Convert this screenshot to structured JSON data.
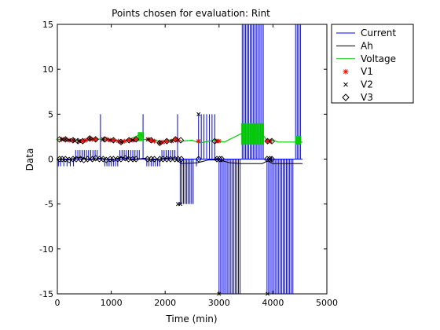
{
  "chart_data": {
    "type": "line",
    "title": "Points chosen for evaluation: Rint",
    "xlabel": "Time (min)",
    "ylabel": "Data",
    "xlim": [
      0,
      5000
    ],
    "ylim": [
      -15,
      15
    ],
    "xticks": [
      0,
      1000,
      2000,
      3000,
      4000,
      5000
    ],
    "yticks": [
      -15,
      -10,
      -5,
      0,
      5,
      10,
      15
    ],
    "grid": false,
    "legend_position": "top-right outside",
    "series": [
      {
        "name": "Current",
        "color": "#0000ff",
        "style": "spiky line",
        "baseline": [
          [
            0,
            0
          ],
          [
            4550,
            0
          ]
        ],
        "spikes": [
          {
            "x": 20,
            "y": -0.8
          },
          {
            "x": 60,
            "y": -0.8
          },
          {
            "x": 120,
            "y": -0.8
          },
          {
            "x": 180,
            "y": -0.8
          },
          {
            "x": 240,
            "y": -0.8
          },
          {
            "x": 300,
            "y": -0.8
          },
          {
            "x": 340,
            "y": 1
          },
          {
            "x": 380,
            "y": 1
          },
          {
            "x": 420,
            "y": 1
          },
          {
            "x": 460,
            "y": 1
          },
          {
            "x": 500,
            "y": 1
          },
          {
            "x": 540,
            "y": 1
          },
          {
            "x": 580,
            "y": 1
          },
          {
            "x": 620,
            "y": 1
          },
          {
            "x": 660,
            "y": 1
          },
          {
            "x": 700,
            "y": 1
          },
          {
            "x": 740,
            "y": 1
          },
          {
            "x": 800,
            "y": 5
          },
          {
            "x": 880,
            "y": -0.8
          },
          {
            "x": 920,
            "y": -0.8
          },
          {
            "x": 960,
            "y": -0.8
          },
          {
            "x": 1000,
            "y": -0.8
          },
          {
            "x": 1040,
            "y": -0.8
          },
          {
            "x": 1080,
            "y": -0.8
          },
          {
            "x": 1120,
            "y": -0.8
          },
          {
            "x": 1160,
            "y": 1
          },
          {
            "x": 1200,
            "y": 1
          },
          {
            "x": 1240,
            "y": 1
          },
          {
            "x": 1280,
            "y": 1
          },
          {
            "x": 1320,
            "y": 1
          },
          {
            "x": 1360,
            "y": 1
          },
          {
            "x": 1400,
            "y": 1
          },
          {
            "x": 1440,
            "y": 1
          },
          {
            "x": 1480,
            "y": 1
          },
          {
            "x": 1520,
            "y": 1
          },
          {
            "x": 1590,
            "y": 5
          },
          {
            "x": 1660,
            "y": -0.8
          },
          {
            "x": 1700,
            "y": -0.8
          },
          {
            "x": 1740,
            "y": -0.8
          },
          {
            "x": 1780,
            "y": -0.8
          },
          {
            "x": 1820,
            "y": -0.8
          },
          {
            "x": 1860,
            "y": -0.8
          },
          {
            "x": 1900,
            "y": -0.8
          },
          {
            "x": 1940,
            "y": 1
          },
          {
            "x": 1980,
            "y": 1
          },
          {
            "x": 2020,
            "y": 1
          },
          {
            "x": 2060,
            "y": 1
          },
          {
            "x": 2100,
            "y": 1
          },
          {
            "x": 2140,
            "y": 1
          },
          {
            "x": 2180,
            "y": 1
          },
          {
            "x": 2230,
            "y": 5
          },
          {
            "x": 2280,
            "y": -5
          },
          {
            "x": 2310,
            "y": -5
          },
          {
            "x": 2340,
            "y": -5
          },
          {
            "x": 2370,
            "y": -5
          },
          {
            "x": 2400,
            "y": -5
          },
          {
            "x": 2430,
            "y": -5
          },
          {
            "x": 2460,
            "y": -5
          },
          {
            "x": 2490,
            "y": -5
          },
          {
            "x": 2520,
            "y": -5
          },
          {
            "x": 2580,
            "y": -0.8
          },
          {
            "x": 2620,
            "y": 5
          },
          {
            "x": 2670,
            "y": 5
          },
          {
            "x": 2720,
            "y": 5
          },
          {
            "x": 2770,
            "y": 5
          },
          {
            "x": 2820,
            "y": 5
          },
          {
            "x": 2870,
            "y": 5
          },
          {
            "x": 2920,
            "y": 5
          },
          {
            "x": 3000,
            "y": -15
          },
          {
            "x": 3030,
            "y": -15
          },
          {
            "x": 3060,
            "y": -15
          },
          {
            "x": 3090,
            "y": -15
          },
          {
            "x": 3120,
            "y": -15
          },
          {
            "x": 3150,
            "y": -15
          },
          {
            "x": 3180,
            "y": -15
          },
          {
            "x": 3210,
            "y": -15
          },
          {
            "x": 3240,
            "y": -15
          },
          {
            "x": 3270,
            "y": -15
          },
          {
            "x": 3300,
            "y": -15
          },
          {
            "x": 3330,
            "y": -15
          },
          {
            "x": 3360,
            "y": -15
          },
          {
            "x": 3390,
            "y": -15
          },
          {
            "x": 3430,
            "y": 15
          },
          {
            "x": 3460,
            "y": 15
          },
          {
            "x": 3490,
            "y": 15
          },
          {
            "x": 3520,
            "y": 15
          },
          {
            "x": 3550,
            "y": 15
          },
          {
            "x": 3580,
            "y": 15
          },
          {
            "x": 3610,
            "y": 15
          },
          {
            "x": 3640,
            "y": 15
          },
          {
            "x": 3670,
            "y": 15
          },
          {
            "x": 3700,
            "y": 15
          },
          {
            "x": 3730,
            "y": 15
          },
          {
            "x": 3760,
            "y": 15
          },
          {
            "x": 3790,
            "y": 15
          },
          {
            "x": 3820,
            "y": 15
          },
          {
            "x": 3890,
            "y": -15
          },
          {
            "x": 3920,
            "y": -15
          },
          {
            "x": 3950,
            "y": -15
          },
          {
            "x": 3980,
            "y": -15
          },
          {
            "x": 4010,
            "y": -15
          },
          {
            "x": 4040,
            "y": -15
          },
          {
            "x": 4070,
            "y": -15
          },
          {
            "x": 4100,
            "y": -15
          },
          {
            "x": 4130,
            "y": -15
          },
          {
            "x": 4160,
            "y": -15
          },
          {
            "x": 4190,
            "y": -15
          },
          {
            "x": 4220,
            "y": -15
          },
          {
            "x": 4250,
            "y": -15
          },
          {
            "x": 4280,
            "y": -15
          },
          {
            "x": 4310,
            "y": -15
          },
          {
            "x": 4340,
            "y": -15
          },
          {
            "x": 4370,
            "y": -15
          },
          {
            "x": 4420,
            "y": 15
          },
          {
            "x": 4450,
            "y": 15
          },
          {
            "x": 4480,
            "y": 15
          },
          {
            "x": 4510,
            "y": 15
          }
        ]
      },
      {
        "name": "Ah",
        "color": "#000000",
        "style": "line",
        "points": [
          [
            0,
            0
          ],
          [
            200,
            -0.1
          ],
          [
            400,
            0.2
          ],
          [
            600,
            -0.1
          ],
          [
            800,
            0.1
          ],
          [
            1000,
            -0.1
          ],
          [
            1200,
            0.2
          ],
          [
            1400,
            -0.1
          ],
          [
            1600,
            0.1
          ],
          [
            1800,
            -0.1
          ],
          [
            2000,
            0.1
          ],
          [
            2200,
            0
          ],
          [
            2300,
            -0.5
          ],
          [
            2600,
            -0.4
          ],
          [
            2800,
            -0.1
          ],
          [
            3000,
            -0.1
          ],
          [
            3200,
            -0.4
          ],
          [
            3400,
            -0.5
          ],
          [
            3800,
            -0.5
          ],
          [
            3900,
            -0.2
          ],
          [
            4000,
            -0.5
          ],
          [
            4400,
            -0.5
          ],
          [
            4550,
            -0.5
          ]
        ]
      },
      {
        "name": "Voltage",
        "color": "#00cc00",
        "style": "band",
        "points": [
          [
            0,
            2.2
          ],
          [
            300,
            2.1
          ],
          [
            500,
            2.0
          ],
          [
            700,
            2.3
          ],
          [
            800,
            2.2
          ],
          [
            1000,
            2.2
          ],
          [
            1200,
            1.9
          ],
          [
            1450,
            2.5
          ],
          [
            1550,
            2.8
          ],
          [
            1600,
            2.2
          ],
          [
            1800,
            2.1
          ],
          [
            2000,
            1.9
          ],
          [
            2200,
            2.3
          ],
          [
            2300,
            2.0
          ],
          [
            2500,
            2.1
          ],
          [
            2650,
            1.8
          ],
          [
            2900,
            2.1
          ],
          [
            3000,
            2.0
          ],
          [
            3100,
            1.9
          ],
          [
            3400,
            2.8
          ],
          [
            3800,
            2.8
          ],
          [
            3900,
            2.0
          ],
          [
            4000,
            2.1
          ],
          [
            4100,
            1.9
          ],
          [
            4550,
            1.9
          ]
        ],
        "noisy_ranges": [
          {
            "x0": 3420,
            "x1": 3830,
            "ylo": 1.6,
            "yhi": 4.0
          },
          {
            "x0": 4420,
            "x1": 4530,
            "ylo": 1.6,
            "yhi": 2.6
          },
          {
            "x0": 1500,
            "x1": 1600,
            "ylo": 2.0,
            "yhi": 3.0
          }
        ]
      },
      {
        "name": "V1",
        "color": "#ff0000",
        "marker": "asterisk",
        "points": [
          [
            80,
            2.2
          ],
          [
            150,
            2.2
          ],
          [
            220,
            2.1
          ],
          [
            300,
            2.1
          ],
          [
            400,
            2.0
          ],
          [
            470,
            2.0
          ],
          [
            530,
            2.1
          ],
          [
            600,
            2.3
          ],
          [
            650,
            2.2
          ],
          [
            710,
            2.2
          ],
          [
            850,
            2.2
          ],
          [
            920,
            2.2
          ],
          [
            980,
            2.1
          ],
          [
            1040,
            2.1
          ],
          [
            1130,
            2.0
          ],
          [
            1190,
            1.9
          ],
          [
            1250,
            2.0
          ],
          [
            1330,
            2.1
          ],
          [
            1400,
            2.1
          ],
          [
            1460,
            2.2
          ],
          [
            1680,
            2.2
          ],
          [
            1740,
            2.1
          ],
          [
            1800,
            2.0
          ],
          [
            1900,
            1.8
          ],
          [
            1960,
            1.9
          ],
          [
            2030,
            2.0
          ],
          [
            2120,
            2.0
          ],
          [
            2190,
            2.2
          ],
          [
            2240,
            2.1
          ],
          [
            2620,
            2.0
          ],
          [
            2960,
            2.0
          ],
          [
            3000,
            2.0
          ],
          [
            3900,
            2.0
          ],
          [
            3950,
            2.0
          ]
        ]
      },
      {
        "name": "V2",
        "color": "#000000",
        "marker": "x",
        "points": [
          [
            80,
            2.2
          ],
          [
            150,
            2.2
          ],
          [
            220,
            2.1
          ],
          [
            300,
            2.1
          ],
          [
            400,
            2.0
          ],
          [
            600,
            2.3
          ],
          [
            850,
            2.2
          ],
          [
            980,
            2.1
          ],
          [
            1190,
            1.9
          ],
          [
            1400,
            2.1
          ],
          [
            1680,
            2.2
          ],
          [
            1900,
            1.8
          ],
          [
            2120,
            2.0
          ],
          [
            2240,
            -5.0
          ],
          [
            2280,
            -5.0
          ],
          [
            2620,
            5.0
          ],
          [
            2960,
            0.0
          ],
          [
            3000,
            -15.0
          ],
          [
            3900,
            -15.0
          ],
          [
            3950,
            0.0
          ]
        ]
      },
      {
        "name": "V3",
        "color": "#000000",
        "marker": "diamond",
        "points": [
          [
            40,
            0.0
          ],
          [
            90,
            0.0
          ],
          [
            150,
            0.0
          ],
          [
            220,
            -0.1
          ],
          [
            290,
            0.0
          ],
          [
            350,
            0.0
          ],
          [
            430,
            0.0
          ],
          [
            490,
            -0.1
          ],
          [
            560,
            0.0
          ],
          [
            650,
            0.0
          ],
          [
            710,
            0.1
          ],
          [
            780,
            0.0
          ],
          [
            850,
            0.0
          ],
          [
            910,
            -0.1
          ],
          [
            980,
            0.0
          ],
          [
            1040,
            0.0
          ],
          [
            1120,
            0.0
          ],
          [
            1180,
            0.0
          ],
          [
            1260,
            0.1
          ],
          [
            1320,
            0.0
          ],
          [
            1400,
            0.0
          ],
          [
            1460,
            0.0
          ],
          [
            1670,
            0.0
          ],
          [
            1740,
            0.0
          ],
          [
            1800,
            0.0
          ],
          [
            1900,
            0.0
          ],
          [
            1960,
            0.0
          ],
          [
            2030,
            0.0
          ],
          [
            2100,
            0.0
          ],
          [
            2180,
            0.0
          ],
          [
            2240,
            0.0
          ],
          [
            2300,
            0.0
          ],
          [
            2620,
            0.0
          ],
          [
            2960,
            0.0
          ],
          [
            3010,
            0.0
          ],
          [
            3050,
            0.0
          ],
          [
            3890,
            0.0
          ],
          [
            3940,
            0.0
          ],
          [
            3980,
            0.0
          ],
          [
            40,
            2.2
          ],
          [
            150,
            2.2
          ],
          [
            290,
            2.1
          ],
          [
            380,
            2.0
          ],
          [
            470,
            2.0
          ],
          [
            600,
            2.3
          ],
          [
            710,
            2.2
          ],
          [
            880,
            2.2
          ],
          [
            1040,
            2.1
          ],
          [
            1180,
            1.9
          ],
          [
            1330,
            2.1
          ],
          [
            1460,
            2.2
          ],
          [
            1740,
            2.1
          ],
          [
            1900,
            1.8
          ],
          [
            2030,
            2.0
          ],
          [
            2190,
            2.2
          ],
          [
            2290,
            2.1
          ],
          [
            2920,
            2.0
          ],
          [
            3900,
            2.0
          ],
          [
            3980,
            2.0
          ]
        ]
      }
    ]
  }
}
